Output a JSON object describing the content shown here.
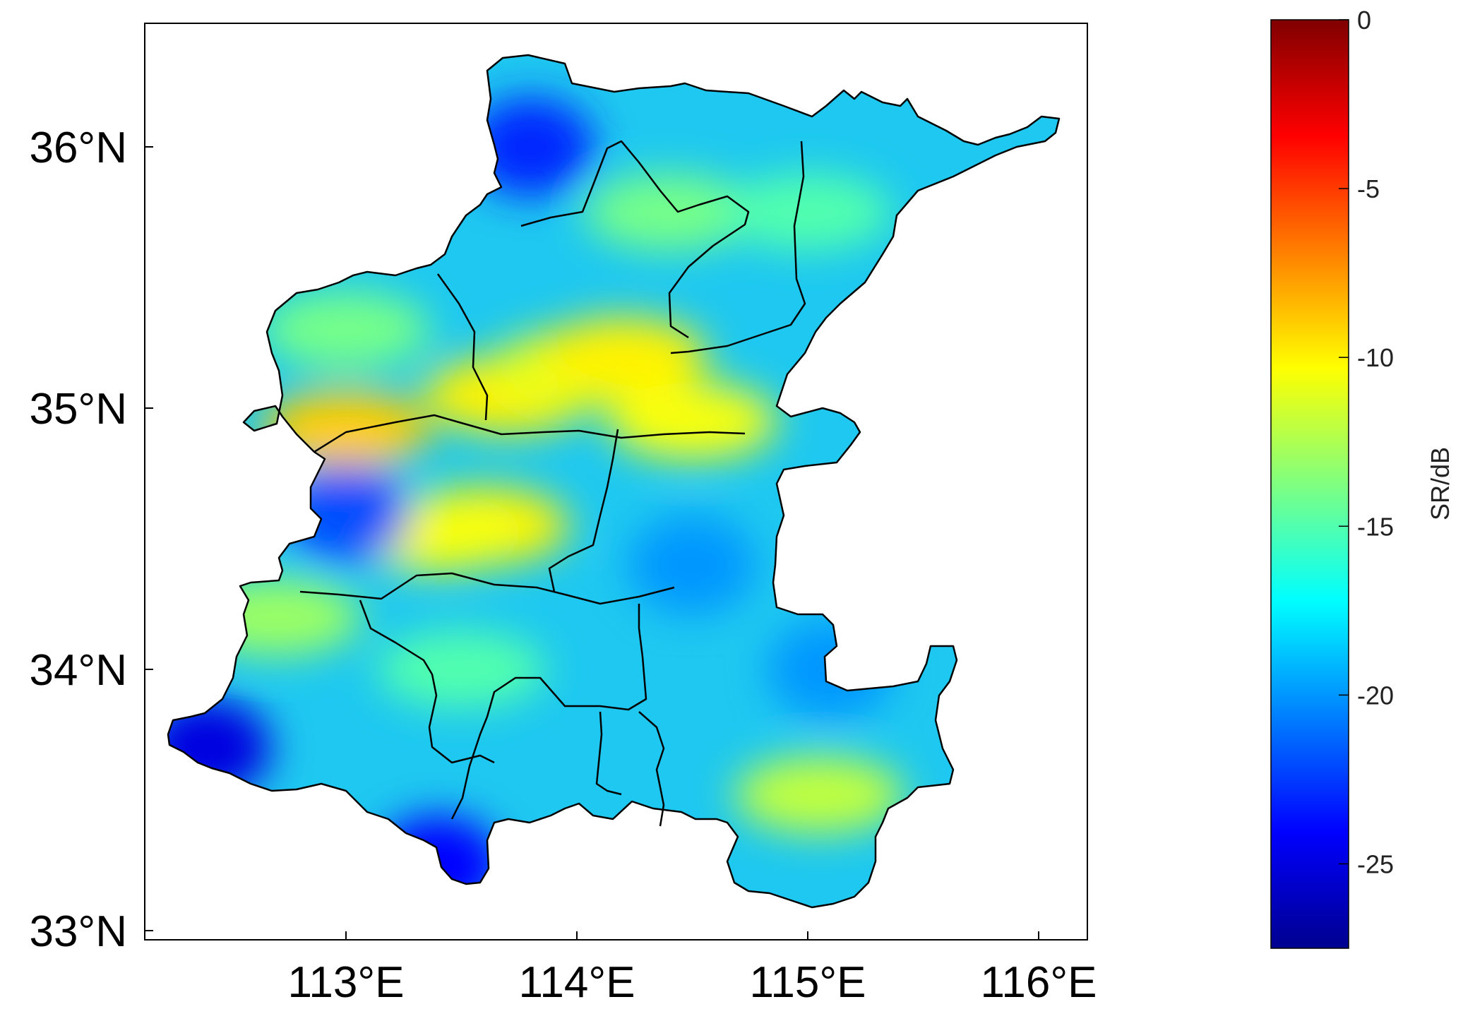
{
  "map": {
    "x_ticks": [
      {
        "value": 113,
        "label": "113°E"
      },
      {
        "value": 114,
        "label": "114°E"
      },
      {
        "value": 115,
        "label": "115°E"
      },
      {
        "value": 116,
        "label": "116°E"
      }
    ],
    "y_ticks": [
      {
        "value": 33,
        "label": "33°N"
      },
      {
        "value": 34,
        "label": "34°N"
      },
      {
        "value": 35,
        "label": "35°N"
      },
      {
        "value": 36,
        "label": "36°N"
      }
    ],
    "lon_range": [
      112.1,
      116.2
    ],
    "lat_range": [
      32.95,
      36.5
    ],
    "boundary_color": "#000000",
    "fill_variable": "SR",
    "hotspots": [
      {
        "lon": 113.0,
        "lat": 34.92,
        "value": -9
      },
      {
        "lon": 113.7,
        "lat": 35.05,
        "value": -10
      },
      {
        "lon": 114.0,
        "lat": 35.15,
        "value": -11
      },
      {
        "lon": 114.2,
        "lat": 35.2,
        "value": -10
      },
      {
        "lon": 114.5,
        "lat": 34.95,
        "value": -10.5
      },
      {
        "lon": 113.6,
        "lat": 34.55,
        "value": -10
      },
      {
        "lon": 113.4,
        "lat": 34.52,
        "value": -10.5
      },
      {
        "lon": 115.05,
        "lat": 33.52,
        "value": -12
      },
      {
        "lon": 112.7,
        "lat": 34.2,
        "value": -13
      },
      {
        "lon": 113.0,
        "lat": 35.3,
        "value": -14
      },
      {
        "lon": 114.4,
        "lat": 35.75,
        "value": -14
      },
      {
        "lon": 115.0,
        "lat": 35.75,
        "value": -15
      },
      {
        "lon": 113.5,
        "lat": 34.0,
        "value": -15
      },
      {
        "lon": 113.8,
        "lat": 36.0,
        "value": -23
      },
      {
        "lon": 113.0,
        "lat": 34.6,
        "value": -22
      },
      {
        "lon": 112.4,
        "lat": 33.7,
        "value": -25
      },
      {
        "lon": 113.4,
        "lat": 33.25,
        "value": -24
      },
      {
        "lon": 115.1,
        "lat": 34.0,
        "value": -20
      },
      {
        "lon": 114.5,
        "lat": 34.4,
        "value": -20
      }
    ]
  },
  "colorbar": {
    "label": "SR/dB",
    "min": -27.5,
    "max": 0,
    "ticks": [
      {
        "value": 0,
        "label": "0"
      },
      {
        "value": -5,
        "label": "-5"
      },
      {
        "value": -10,
        "label": "-10"
      },
      {
        "value": -15,
        "label": "-15"
      },
      {
        "value": -20,
        "label": "-20"
      },
      {
        "value": -25,
        "label": "-25"
      }
    ],
    "colormap": [
      "#00008f",
      "#0000ff",
      "#00ffff",
      "#ffff00",
      "#ff0000",
      "#800000"
    ]
  }
}
